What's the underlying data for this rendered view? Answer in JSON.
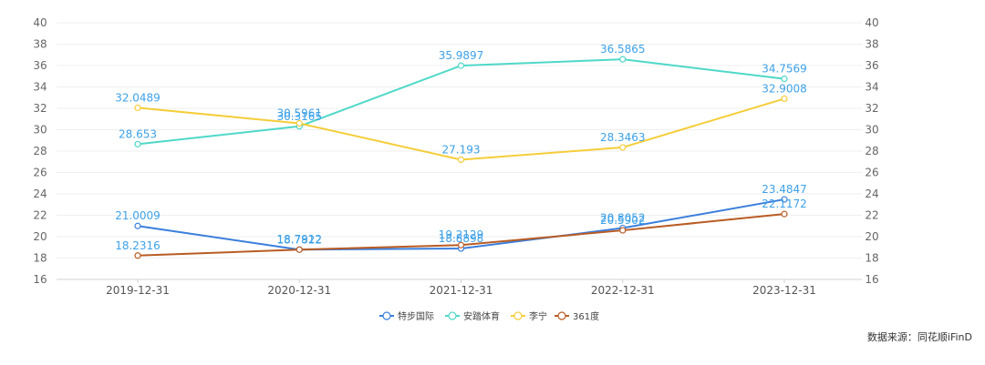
{
  "chart_data": {
    "type": "line",
    "x": [
      "2019-12-31",
      "2020-12-31",
      "2021-12-31",
      "2022-12-31",
      "2023-12-31"
    ],
    "series": [
      {
        "name": "特步国际",
        "color": "#3a7fdc",
        "values": [
          21.0009,
          18.7912,
          18.8898,
          20.8052,
          23.4847
        ]
      },
      {
        "name": "安踏体育",
        "color": "#4fd8c8",
        "values": [
          28.653,
          30.3165,
          35.9897,
          36.5865,
          34.7569
        ]
      },
      {
        "name": "李宁",
        "color": "#f5cd3a",
        "values": [
          32.0489,
          30.5961,
          27.193,
          28.3463,
          32.9008
        ]
      },
      {
        "name": "361度",
        "color": "#b85c24",
        "values": [
          18.2316,
          18.7822,
          19.2129,
          20.5902,
          22.1172
        ]
      }
    ],
    "labels": [
      [
        "21.0009",
        "18.7912",
        "18.8898",
        "20.8052",
        "23.4847"
      ],
      [
        "28.653",
        "30.3165",
        "35.9897",
        "36.5865",
        "34.7569"
      ],
      [
        "32.0489",
        "30.5961",
        "27.193",
        "28.3463",
        "32.9008"
      ],
      [
        "18.2316",
        "18.7822",
        "19.2129",
        "20.5902",
        "22.1172"
      ]
    ],
    "yticks": [
      "16",
      "18",
      "20",
      "22",
      "24",
      "26",
      "28",
      "30",
      "32",
      "34",
      "36",
      "38",
      "40"
    ],
    "ylim": [
      16,
      40
    ],
    "grid": true,
    "legend": "bottom-center"
  },
  "source_text": "数据来源：同花顺iFinD"
}
